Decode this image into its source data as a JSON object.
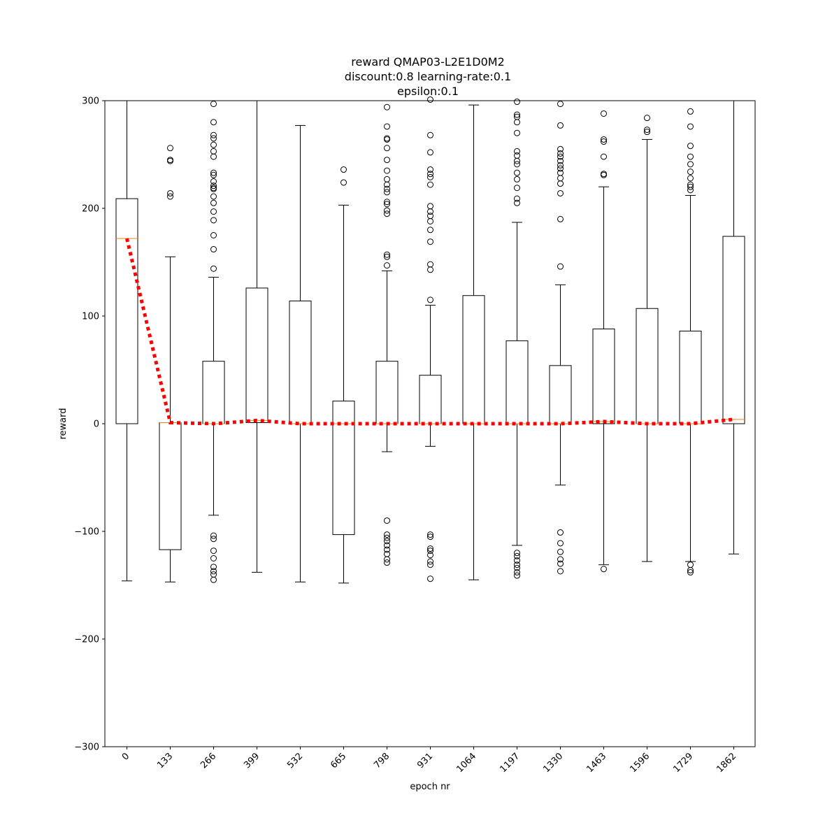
{
  "chart_data": {
    "type": "boxplot",
    "title_lines": [
      "reward QMAP03-L2E1D0M2",
      "discount:0.8 learning-rate:0.1",
      "epsilon:0.1"
    ],
    "xlabel": "epoch nr",
    "ylabel": "reward",
    "ylim": [
      -300,
      300
    ],
    "yticks": [
      -300,
      -200,
      -100,
      0,
      100,
      200,
      300
    ],
    "categories": [
      "0",
      "133",
      "266",
      "399",
      "532",
      "665",
      "798",
      "931",
      "1064",
      "1197",
      "1330",
      "1463",
      "1596",
      "1729",
      "1862"
    ],
    "grid": false,
    "colors": {
      "box": "#000000",
      "median": "#ff7f0e",
      "trend": "#ff0000"
    },
    "trend_line": {
      "style": "dotted",
      "values": [
        172,
        1,
        0,
        3,
        0,
        0,
        0,
        0,
        0,
        0,
        0,
        2,
        0,
        0,
        4
      ]
    },
    "boxes": [
      {
        "label": "0",
        "q1": 0,
        "median": 172,
        "q3": 209,
        "whisker_low": -146,
        "whisker_high": 300,
        "outliers": []
      },
      {
        "label": "133",
        "q1": -117,
        "median": 1,
        "q3": 1,
        "whisker_low": -147,
        "whisker_high": 155,
        "outliers": [
          211,
          214,
          244,
          245,
          256
        ]
      },
      {
        "label": "266",
        "q1": 0,
        "median": 0,
        "q3": 58,
        "whisker_low": -85,
        "whisker_high": 136,
        "outliers": [
          -145,
          -140,
          -137,
          -133,
          -125,
          -118,
          -107,
          -104,
          144,
          162,
          175,
          189,
          197,
          205,
          211,
          218,
          219,
          221,
          225,
          231,
          233,
          248,
          253,
          259,
          265,
          268,
          280,
          297
        ]
      },
      {
        "label": "399",
        "q1": 1,
        "median": 3,
        "q3": 126,
        "whisker_low": -138,
        "whisker_high": 300,
        "outliers": []
      },
      {
        "label": "532",
        "q1": 0,
        "median": 0,
        "q3": 114,
        "whisker_low": -147,
        "whisker_high": 277,
        "outliers": []
      },
      {
        "label": "665",
        "q1": -103,
        "median": 0,
        "q3": 21,
        "whisker_low": -148,
        "whisker_high": 203,
        "outliers": [
          224,
          236
        ]
      },
      {
        "label": "798",
        "q1": 0,
        "median": 0,
        "q3": 58,
        "whisker_low": -26,
        "whisker_high": 142,
        "outliers": [
          -129,
          -126,
          -121,
          -117,
          -113,
          -109,
          -106,
          -103,
          -90,
          147,
          155,
          157,
          195,
          198,
          204,
          206,
          215,
          218,
          222,
          227,
          235,
          245,
          256,
          264,
          265,
          276,
          294
        ]
      },
      {
        "label": "931",
        "q1": 0,
        "median": 0,
        "q3": 45,
        "whisker_low": -21,
        "whisker_high": 110,
        "outliers": [
          -144,
          -131,
          -128,
          -122,
          -118,
          -116,
          -105,
          -103,
          115,
          143,
          148,
          169,
          180,
          188,
          193,
          197,
          202,
          222,
          229,
          232,
          236,
          252,
          268,
          301
        ]
      },
      {
        "label": "1064",
        "q1": 0,
        "median": 0,
        "q3": 119,
        "whisker_low": -145,
        "whisker_high": 296,
        "outliers": []
      },
      {
        "label": "1197",
        "q1": 0,
        "median": 0,
        "q3": 77,
        "whisker_low": -113,
        "whisker_high": 187,
        "outliers": [
          -141,
          -138,
          -134,
          -131,
          -127,
          -123,
          -120,
          205,
          209,
          219,
          227,
          233,
          241,
          244,
          249,
          253,
          270,
          280,
          285,
          287,
          299
        ]
      },
      {
        "label": "1330",
        "q1": 0,
        "median": 0,
        "q3": 54,
        "whisker_low": -57,
        "whisker_high": 129,
        "outliers": [
          -137,
          -130,
          -126,
          -119,
          -111,
          -101,
          146,
          190,
          214,
          223,
          228,
          233,
          237,
          240,
          244,
          248,
          251,
          255,
          277,
          297
        ]
      },
      {
        "label": "1463",
        "q1": 0,
        "median": 2,
        "q3": 88,
        "whisker_low": -131,
        "whisker_high": 220,
        "outliers": [
          -135,
          231,
          232,
          248,
          262,
          264,
          288
        ]
      },
      {
        "label": "1596",
        "q1": 0,
        "median": 0,
        "q3": 107,
        "whisker_low": -128,
        "whisker_high": 264,
        "outliers": [
          271,
          273,
          284
        ]
      },
      {
        "label": "1729",
        "q1": 0,
        "median": 0,
        "q3": 86,
        "whisker_low": -128,
        "whisker_high": 212,
        "outliers": [
          -138,
          -136,
          -131,
          217,
          220,
          222,
          228,
          234,
          241,
          248,
          258,
          276,
          290
        ]
      },
      {
        "label": "1862",
        "q1": 0,
        "median": 4,
        "q3": 174,
        "whisker_low": -121,
        "whisker_high": 300,
        "outliers": []
      }
    ]
  }
}
